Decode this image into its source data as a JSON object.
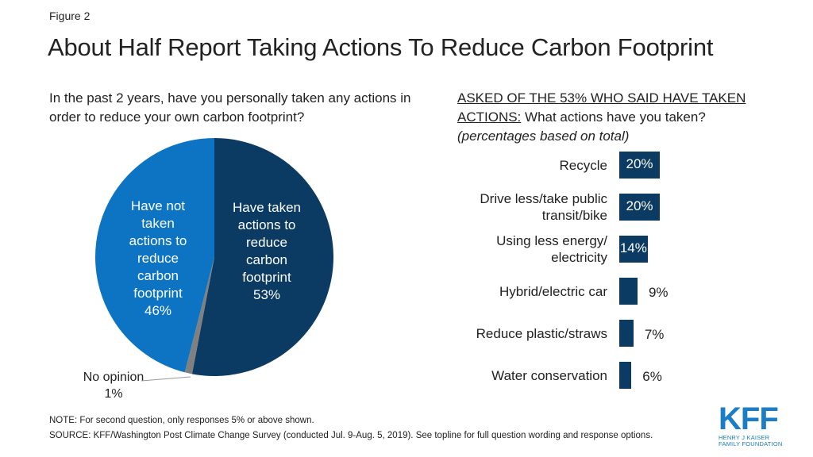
{
  "figure_label": "Figure 2",
  "title": "About Half Report Taking Actions To Reduce Carbon Footprint",
  "left_question": "In the past 2 years, have you personally taken any actions in order to reduce your own carbon footprint?",
  "right_question": {
    "underlined": "ASKED OF THE 53% WHO SAID HAVE TAKEN ACTIONS:",
    "text": " What actions have you taken?",
    "italic": "(percentages based on total)"
  },
  "colors": {
    "dark_navy": "#0b3a63",
    "bright_blue": "#0d74c4",
    "gray": "#808080",
    "bar": "#0b3a63"
  },
  "chart_data": [
    {
      "type": "pie",
      "slices": [
        {
          "label": "Have taken actions to reduce carbon footprint",
          "value": 53,
          "value_label": "53%",
          "color": "#0b3a63"
        },
        {
          "label": "No opinion",
          "value": 1,
          "value_label": "1%",
          "color": "#808080"
        },
        {
          "label": "Have not taken actions to reduce carbon footprint",
          "value": 46,
          "value_label": "46%",
          "color": "#0d74c4"
        }
      ]
    },
    {
      "type": "bar",
      "orientation": "horizontal",
      "categories": [
        "Recycle",
        "Drive less/take public transit/bike",
        "Using less energy/ electricity",
        "Hybrid/electric car",
        "Reduce plastic/straws",
        "Water conservation"
      ],
      "values": [
        20,
        20,
        14,
        9,
        7,
        6
      ],
      "value_labels": [
        "20%",
        "20%",
        "14%",
        "9%",
        "7%",
        "6%"
      ],
      "value_label_inside": [
        true,
        true,
        true,
        false,
        false,
        false
      ]
    }
  ],
  "pie_labels": {
    "not_taken": [
      "Have not",
      "taken",
      "actions to",
      "reduce",
      "carbon",
      "footprint",
      "46%"
    ],
    "taken": [
      "Have taken",
      "actions to",
      "reduce",
      "carbon",
      "footprint",
      "53%"
    ],
    "no_opinion": [
      "No opinion",
      "1%"
    ]
  },
  "bar_category_lines": [
    [
      "Recycle"
    ],
    [
      "Drive less/take public",
      "transit/bike"
    ],
    [
      "Using less energy/",
      "electricity"
    ],
    [
      "Hybrid/electric car"
    ],
    [
      "Reduce plastic/straws"
    ],
    [
      "Water conservation"
    ]
  ],
  "note": "NOTE: For second question, only responses 5% or above shown.",
  "source": "SOURCE: KFF/Washington Post Climate Change Survey (conducted Jul. 9-Aug. 5, 2019). See topline for full question wording and response options.",
  "logo": {
    "name": "KFF",
    "line1": "HENRY J KAISER",
    "line2": "FAMILY FOUNDATION"
  }
}
